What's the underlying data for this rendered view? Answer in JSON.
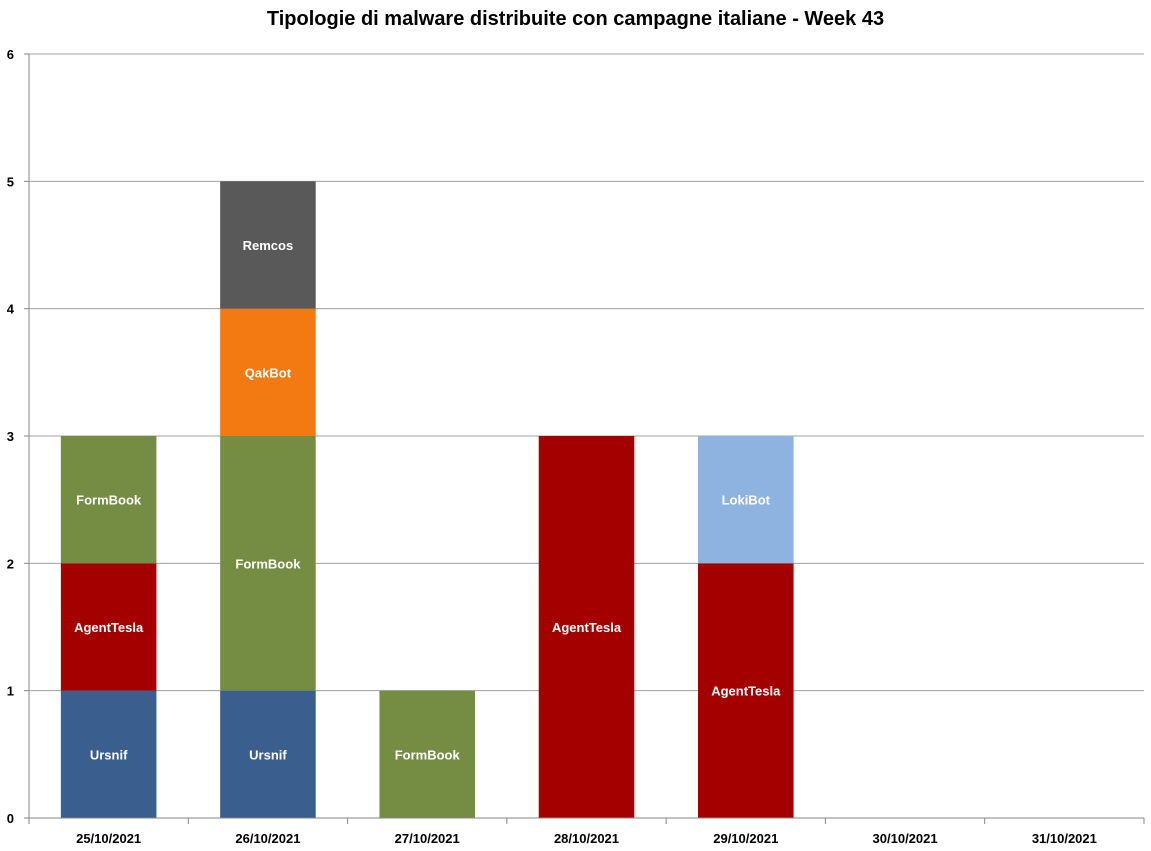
{
  "chart_data": {
    "type": "bar",
    "stacked": true,
    "title": "Tipologie di malware distribuite con campagne italiane - Week 43",
    "xlabel": "",
    "ylabel": "",
    "ylim": [
      0,
      6
    ],
    "yticks": [
      "0",
      "1",
      "2",
      "3",
      "4",
      "5",
      "6"
    ],
    "grid": true,
    "legend": "none",
    "categories": [
      "25/10/2021",
      "26/10/2021",
      "27/10/2021",
      "28/10/2021",
      "29/10/2021",
      "30/10/2021",
      "31/10/2021"
    ],
    "stacks": [
      [
        {
          "label": "Ursnif",
          "value": 1,
          "color": "#3a5f8f"
        },
        {
          "label": "AgentTesla",
          "value": 1,
          "color": "#a50000"
        },
        {
          "label": "FormBook",
          "value": 1,
          "color": "#758d43"
        }
      ],
      [
        {
          "label": "Ursnif",
          "value": 1,
          "color": "#3a5f8f"
        },
        {
          "label": "FormBook",
          "value": 2,
          "color": "#758d43"
        },
        {
          "label": "QakBot",
          "value": 1,
          "color": "#f37a12"
        },
        {
          "label": "Remcos",
          "value": 1,
          "color": "#595959"
        }
      ],
      [
        {
          "label": "FormBook",
          "value": 1,
          "color": "#758d43"
        }
      ],
      [
        {
          "label": "AgentTesla",
          "value": 3,
          "color": "#a50000"
        }
      ],
      [
        {
          "label": "AgentTesla",
          "value": 2,
          "color": "#a50000"
        },
        {
          "label": "LokiBot",
          "value": 1,
          "color": "#8eb3e0"
        }
      ],
      [],
      []
    ],
    "colors": {
      "gridline": "#a0a0a0",
      "axis": "#868686"
    }
  }
}
